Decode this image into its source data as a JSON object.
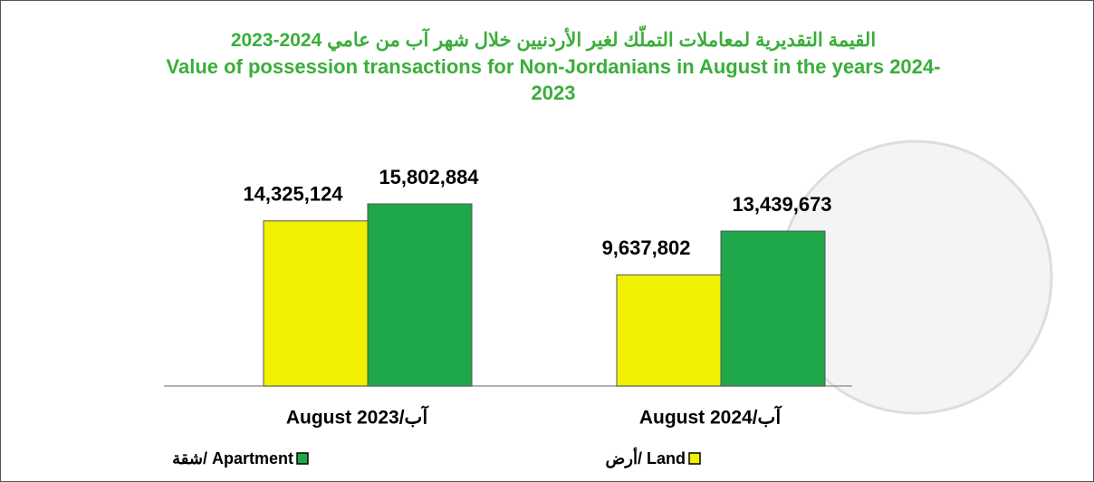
{
  "chart_data": {
    "type": "bar",
    "title": "القيمة التقديرية لمعاملات التملّك لغير الأردنيين خلال شهر آب من عامي 2024-2023",
    "subtitle": "Value of possession transactions for Non-Jordanians in August in the years 2024-2023",
    "categories": [
      "August 2023/آب",
      "August 2024/آب"
    ],
    "series": [
      {
        "name": "أرض/ Land",
        "color": "#f0f000",
        "values": [
          14325124,
          9637802
        ],
        "value_labels": [
          "14,325,124",
          "9,637,802"
        ]
      },
      {
        "name": "شقة/ Apartment",
        "color": "#1fa84a",
        "values": [
          15802884,
          13439673
        ],
        "value_labels": [
          "15,802,884",
          "13,439,673"
        ]
      }
    ]
  }
}
